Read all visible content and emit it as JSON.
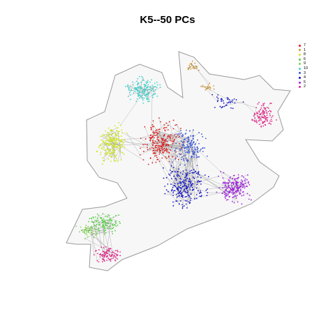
{
  "title": "K5--50 PCs",
  "colors": {
    "edge": "#9a9a9a",
    "background": "#ffffff"
  },
  "legend": [
    {
      "label": "7",
      "color": "#e01a1a"
    },
    {
      "label": "1",
      "color": "#c8923a"
    },
    {
      "label": "8",
      "color": "#cde41e"
    },
    {
      "label": "6",
      "color": "#4fcf3c"
    },
    {
      "label": "9",
      "color": "#7fd14a"
    },
    {
      "label": "10",
      "color": "#3fd2cc"
    },
    {
      "label": "3",
      "color": "#3a55d6"
    },
    {
      "label": "4",
      "color": "#1414c8"
    },
    {
      "label": "5",
      "color": "#a020e0"
    },
    {
      "label": "2",
      "color": "#e02a8a"
    }
  ],
  "clusters": [
    {
      "label": "7"
    },
    {
      "label": "1"
    },
    {
      "label": "8"
    },
    {
      "label": "6"
    },
    {
      "label": "9"
    },
    {
      "label": "10"
    },
    {
      "label": "3"
    },
    {
      "label": "4"
    },
    {
      "label": "5"
    },
    {
      "label": "2"
    }
  ]
}
